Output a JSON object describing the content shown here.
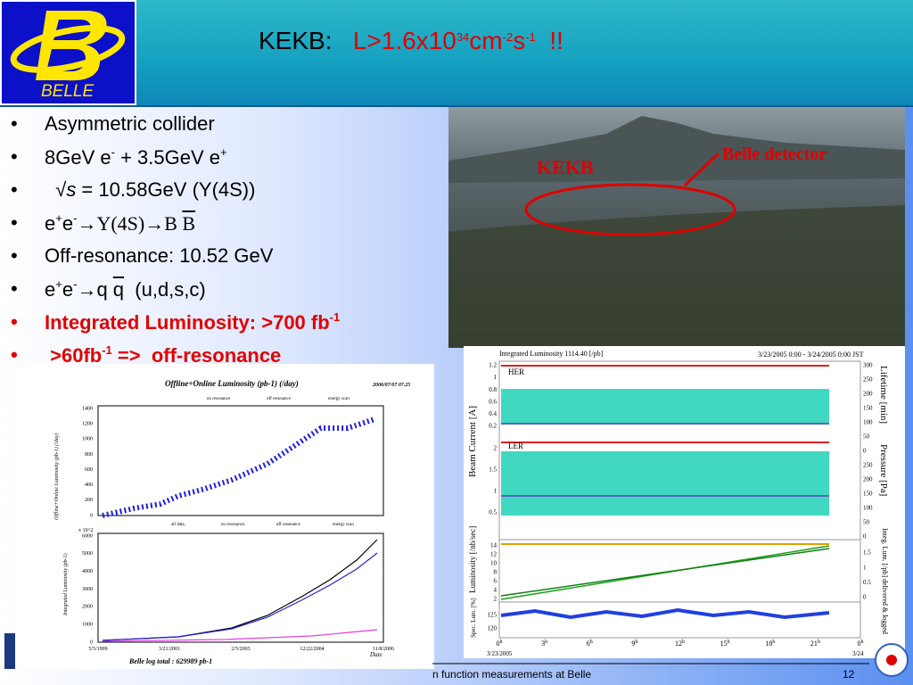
{
  "header": {
    "title_prefix": "KEKB:",
    "title_parts": [
      "L>1.6x10",
      "34",
      "cm",
      "-2",
      "s",
      "-1",
      "!!"
    ]
  },
  "bullets": [
    [
      "Asymmetric collider"
    ],
    [
      "8GeV e",
      "-",
      " + 3.5GeV e",
      "+"
    ],
    [
      "√",
      "s",
      " = 10.58GeV (Υ(4S))"
    ],
    [
      "e",
      "+",
      "e",
      "-",
      "→Υ(4S)→B ",
      "B"
    ],
    [
      "Off-resonance: 10.52 GeV"
    ],
    [
      "e",
      "+",
      "e",
      "-",
      "→q ",
      "q",
      "  (u,d,s,c)"
    ],
    [
      "Integrated Luminosity: >700 fb",
      "-1"
    ],
    [
      ">60fb",
      "-1",
      " =>  off-resonance"
    ]
  ],
  "photo": {
    "label_ring": "KEKB",
    "label_detector": "Belle detector"
  },
  "left_plot": {
    "top": {
      "title": "Offline+Online Luminosity (pb-1) (/day)",
      "date": "2006/07/07  07.25",
      "legend": [
        "on resonance",
        "off resonance",
        "energy scan"
      ],
      "y_title": "Offline+Online Luminosity (pb-1) (/day)",
      "yticks": [
        1400,
        1200,
        1000,
        800,
        600,
        400,
        200,
        0
      ]
    },
    "bottom": {
      "scale": "x 10^2",
      "legend": [
        "all data,",
        "on resonance,",
        "off resonance",
        "energy scan"
      ],
      "y_title": "Integrated Luminosity (pb-1)",
      "yticks": [
        6000,
        5000,
        4000,
        3000,
        2000,
        1000,
        0
      ],
      "xticks": [
        "5/5/1999",
        "3/21/2001",
        "2/5/2003",
        "12/22/2004",
        "11/8/2006"
      ],
      "x_title": "Date",
      "total": "Belle log total : 629989 pb-1"
    }
  },
  "right_plot": {
    "integ": "Integrated Luminosity    1114.40  [/pb]",
    "range": "3/23/2005 0:00 - 3/24/2005 0:00 JST",
    "her": "HER",
    "ler": "LER",
    "beam_title": "Beam Current [A]",
    "lumi_title": "Luminosity [/nb/sec]",
    "spec_title": "Spec. Lum. [%]",
    "lifetime_title": "Lifetime [min]",
    "pressure_title": "Pressure [Pa]",
    "integ_title": "Integ. Lum. [/pb] delivered & logged",
    "her_ticks": [
      1.2,
      1,
      0.8,
      0.6,
      0.4,
      0.2
    ],
    "ler_ticks": [
      2,
      1.5,
      1,
      0.5
    ],
    "lumi_ticks": [
      14,
      12,
      10,
      8,
      6,
      4,
      2
    ],
    "spec_ticks": [
      125,
      120
    ],
    "life_ticks": [
      300,
      250,
      200,
      150,
      100,
      50,
      0,
      250,
      200,
      150,
      100,
      50,
      0
    ],
    "integ_ticks": [
      1.5,
      1,
      0.5,
      0
    ],
    "hours": [
      0,
      3,
      6,
      9,
      12,
      15,
      18,
      21,
      0
    ],
    "hour_unit": "h",
    "date_start": "3/23/2005",
    "date_end": "3/24"
  },
  "footer": {
    "text": "n function measurements at Belle",
    "page": "12"
  }
}
